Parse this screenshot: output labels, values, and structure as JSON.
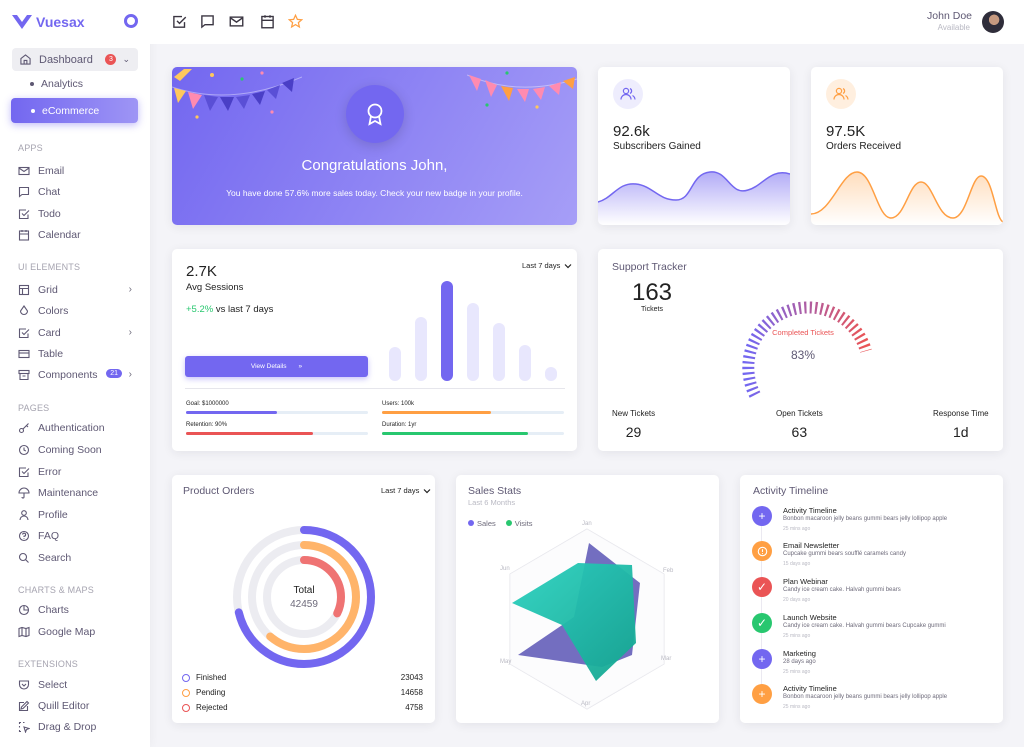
{
  "brand": {
    "name": "Vuesax"
  },
  "sidebar": {
    "dashboard": {
      "label": "Dashboard",
      "badge": "3"
    },
    "sub": [
      {
        "label": "Analytics"
      },
      {
        "label": "eCommerce"
      }
    ],
    "sections": {
      "apps": "APPS",
      "ui": "UI ELEMENTS",
      "pages": "PAGES",
      "charts": "CHARTS & MAPS",
      "extensions": "EXTENSIONS"
    },
    "items": [
      {
        "label": "Email",
        "icon": "mail-icon"
      },
      {
        "label": "Chat",
        "icon": "message-icon"
      },
      {
        "label": "Todo",
        "icon": "check-square-icon"
      },
      {
        "label": "Calendar",
        "icon": "calendar-icon"
      },
      {
        "label": "Grid",
        "icon": "layout-icon"
      },
      {
        "label": "Colors",
        "icon": "droplet-icon"
      },
      {
        "label": "Card",
        "icon": "check-square-icon"
      },
      {
        "label": "Table",
        "icon": "credit-card-icon"
      },
      {
        "label": "Components",
        "icon": "archive-icon",
        "badge": "21"
      },
      {
        "label": "Authentication",
        "icon": "key-icon"
      },
      {
        "label": "Coming Soon",
        "icon": "clock-icon"
      },
      {
        "label": "Error",
        "icon": "check-square-icon"
      },
      {
        "label": "Maintenance",
        "icon": "umbrella-icon"
      },
      {
        "label": "Profile",
        "icon": "user-icon"
      },
      {
        "label": "FAQ",
        "icon": "help-circle-icon"
      },
      {
        "label": "Search",
        "icon": "search-icon"
      },
      {
        "label": "Charts",
        "icon": "pie-chart-icon"
      },
      {
        "label": "Google Map",
        "icon": "map-icon"
      },
      {
        "label": "Select",
        "icon": "pocket-icon"
      },
      {
        "label": "Quill Editor",
        "icon": "edit-icon"
      },
      {
        "label": "Drag & Drop",
        "icon": "drag-icon"
      }
    ]
  },
  "topbar": {
    "icons": [
      "check-square-icon",
      "message-icon",
      "mail-icon",
      "calendar-icon",
      "star-icon"
    ],
    "user": {
      "name": "John Doe",
      "status": "Available"
    }
  },
  "congrats": {
    "title": "Congratulations John,",
    "text": "You have done 57.6% more sales today. Check your new badge in your profile."
  },
  "stats": [
    {
      "value": "92.6k",
      "label": "Subscribers Gained",
      "color": "#7367f0"
    },
    {
      "value": "97.5K",
      "label": "Orders Received",
      "color": "#ff9f43"
    }
  ],
  "sessions": {
    "value": "2.7K",
    "label": "Avg Sessions",
    "change": "+5.2%",
    "change_suffix": "vs last 7 days",
    "button": "View Details",
    "button_arrow": "»",
    "range": "Last 7 days",
    "progress": [
      {
        "label": "Goal: $1000000",
        "value": 0.5,
        "color": "#7367f0"
      },
      {
        "label": "Users: 100k",
        "value": 0.6,
        "color": "#ff9f43"
      },
      {
        "label": "Retention: 90%",
        "value": 0.7,
        "color": "#ea5455"
      },
      {
        "label": "Duration: 1yr",
        "value": 0.8,
        "color": "#28c76f"
      }
    ]
  },
  "tracker": {
    "title": "Support Tracker",
    "tickets": "163",
    "tickets_label": "Tickets",
    "gauge_label": "Completed Tickets",
    "gauge_value": "83%",
    "stats": [
      {
        "label": "New Tickets",
        "value": "29"
      },
      {
        "label": "Open Tickets",
        "value": "63"
      },
      {
        "label": "Response Time",
        "value": "1d"
      }
    ]
  },
  "orders": {
    "title": "Product Orders",
    "range": "Last 7 days",
    "total_label": "Total",
    "total_value": "42459",
    "legend": [
      {
        "label": "Finished",
        "value": "23043",
        "color": "#7367f0"
      },
      {
        "label": "Pending",
        "value": "14658",
        "color": "#ff9f43"
      },
      {
        "label": "Rejected",
        "value": "4758",
        "color": "#ea5455"
      }
    ]
  },
  "sales": {
    "title": "Sales Stats",
    "subtitle": "Last 6 Months",
    "legend": [
      {
        "label": "Sales",
        "color": "#7367f0"
      },
      {
        "label": "Visits",
        "color": "#28c76f"
      }
    ],
    "axes": [
      "Jan",
      "Feb",
      "Mar",
      "Apr",
      "May",
      "Jun"
    ]
  },
  "timeline": {
    "title": "Activity Timeline",
    "items": [
      {
        "title": "Activity Timeline",
        "desc": "Bonbon macaroon jelly beans gummi bears jelly lollipop apple",
        "time": "25 mins ago",
        "color": "#7367f0",
        "icon": "plus-icon"
      },
      {
        "title": "Email Newsletter",
        "desc": "Cupcake gummi bears soufflé caramels candy",
        "time": "15 days ago",
        "color": "#ff9f43",
        "icon": "alert-circle-icon"
      },
      {
        "title": "Plan Webinar",
        "desc": "Candy ice cream cake. Halvah gummi bears",
        "time": "20 days ago",
        "color": "#ea5455",
        "icon": "check-icon"
      },
      {
        "title": "Launch Website",
        "desc": "Candy ice cream cake. Halvah gummi bears Cupcake gummi",
        "time": "25 mins ago",
        "color": "#28c76f",
        "icon": "check-icon"
      },
      {
        "title": "Marketing",
        "desc": "28 days ago",
        "time": "25 mins ago",
        "color": "#7367f0",
        "icon": "plus-icon"
      },
      {
        "title": "Activity Timeline",
        "desc": "Bonbon macaroon jelly beans gummi bears jelly lollipop apple",
        "time": "25 mins ago",
        "color": "#ff9f43",
        "icon": "plus-icon"
      }
    ]
  }
}
